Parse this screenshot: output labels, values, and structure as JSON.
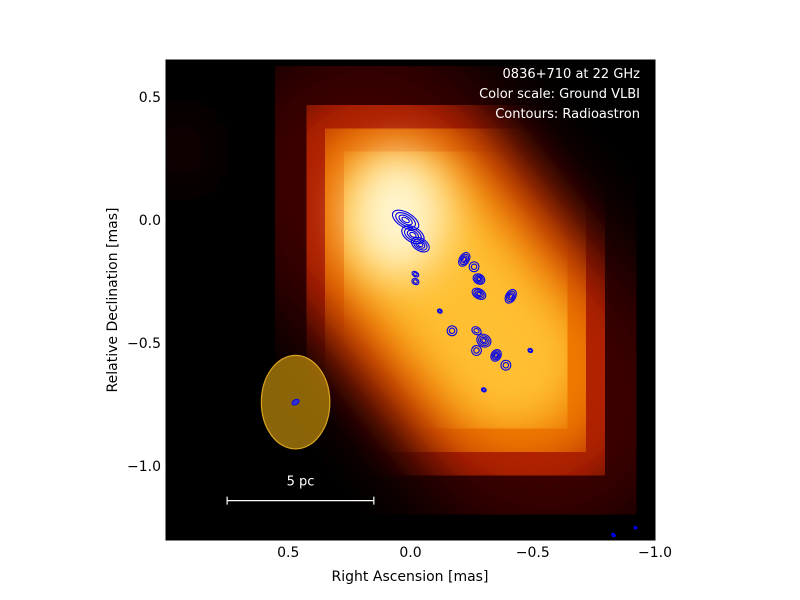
{
  "chart_data": {
    "type": "heatmap",
    "title": "",
    "xlabel": "Right Ascension [mas]",
    "ylabel": "Relative Declination [mas]",
    "xlim": [
      1.0,
      -1.0
    ],
    "ylim": [
      -1.3,
      0.65
    ],
    "x_ticks": [
      {
        "value": 0.5,
        "label": "0.5"
      },
      {
        "value": 0.0,
        "label": "0.0"
      },
      {
        "value": -0.5,
        "label": "−0.5"
      },
      {
        "value": -1.0,
        "label": "−1.0"
      }
    ],
    "y_ticks": [
      {
        "value": 0.5,
        "label": "0.5"
      },
      {
        "value": 0.0,
        "label": "0.0"
      },
      {
        "value": -0.5,
        "label": "−0.5"
      },
      {
        "value": -1.0,
        "label": "−1.0"
      }
    ],
    "grid": false,
    "annotations": [
      "0836+710 at 22 GHz",
      "Color scale: Ground VLBI",
      "Contours: Radioastron"
    ],
    "colormap": "afmhot",
    "contour_color": "#0000ee",
    "ground_emission": {
      "core": {
        "x": 0.03,
        "y": -0.02
      },
      "tail": {
        "x": -0.4,
        "y": -0.55
      }
    },
    "ground_beam": {
      "x": 0.47,
      "y": -0.74,
      "major_axis": 0.38,
      "minor_axis": 0.28,
      "color": "#b8860b"
    },
    "radioastron_beam": {
      "x": 0.47,
      "y": -0.74
    },
    "contour_features": [
      {
        "x": 0.02,
        "y": 0.0,
        "w": 0.06,
        "h": 0.03
      },
      {
        "x": -0.01,
        "y": -0.06,
        "w": 0.05,
        "h": 0.03
      },
      {
        "x": -0.04,
        "y": -0.1,
        "w": 0.04,
        "h": 0.025
      },
      {
        "x": -0.02,
        "y": -0.22,
        "w": 0.015,
        "h": 0.01
      },
      {
        "x": -0.02,
        "y": -0.25,
        "w": 0.015,
        "h": 0.012
      },
      {
        "x": -0.22,
        "y": -0.16,
        "w": 0.02,
        "h": 0.03
      },
      {
        "x": -0.26,
        "y": -0.19,
        "w": 0.02,
        "h": 0.02
      },
      {
        "x": -0.28,
        "y": -0.24,
        "w": 0.025,
        "h": 0.02
      },
      {
        "x": -0.28,
        "y": -0.3,
        "w": 0.03,
        "h": 0.02
      },
      {
        "x": -0.41,
        "y": -0.31,
        "w": 0.02,
        "h": 0.03
      },
      {
        "x": -0.12,
        "y": -0.37,
        "w": 0.01,
        "h": 0.008
      },
      {
        "x": -0.17,
        "y": -0.45,
        "w": 0.02,
        "h": 0.02
      },
      {
        "x": -0.27,
        "y": -0.45,
        "w": 0.02,
        "h": 0.015
      },
      {
        "x": -0.3,
        "y": -0.49,
        "w": 0.03,
        "h": 0.025
      },
      {
        "x": -0.27,
        "y": -0.53,
        "w": 0.02,
        "h": 0.02
      },
      {
        "x": -0.35,
        "y": -0.55,
        "w": 0.02,
        "h": 0.025
      },
      {
        "x": -0.39,
        "y": -0.59,
        "w": 0.02,
        "h": 0.02
      },
      {
        "x": -0.49,
        "y": -0.53,
        "w": 0.01,
        "h": 0.008
      },
      {
        "x": -0.3,
        "y": -0.69,
        "w": 0.01,
        "h": 0.008
      },
      {
        "x": -0.83,
        "y": -1.28,
        "w": 0.008,
        "h": 0.006
      },
      {
        "x": -0.92,
        "y": -1.25,
        "w": 0.006,
        "h": 0.004
      }
    ],
    "scale_bar": {
      "label": "5 pc",
      "x_start": 0.75,
      "x_end": 0.15,
      "y": -1.14,
      "color": "#ffffff"
    }
  }
}
